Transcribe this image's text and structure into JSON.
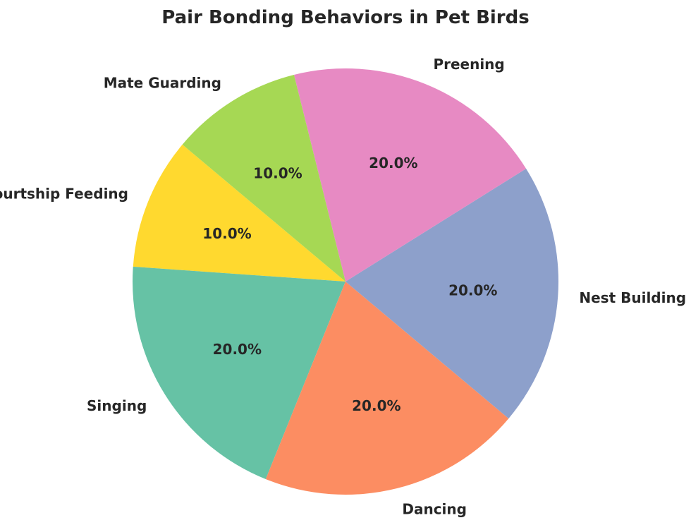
{
  "chart_data": {
    "type": "pie",
    "title": "Pair Bonding Behaviors in Pet Birds",
    "start_angle_deg": 140,
    "direction": "counterclockwise",
    "slices": [
      {
        "label": "Courtship Feeding",
        "value": 10,
        "pct_label": "10.0%",
        "color": "#ffd92f"
      },
      {
        "label": "Singing",
        "value": 20,
        "pct_label": "20.0%",
        "color": "#66c2a5"
      },
      {
        "label": "Dancing",
        "value": 20,
        "pct_label": "20.0%",
        "color": "#fc8d62"
      },
      {
        "label": "Nest Building",
        "value": 20,
        "pct_label": "20.0%",
        "color": "#8da0cb"
      },
      {
        "label": "Preening",
        "value": 20,
        "pct_label": "20.0%",
        "color": "#e78ac3"
      },
      {
        "label": "Mate Guarding",
        "value": 10,
        "pct_label": "10.0%",
        "color": "#a6d854"
      }
    ]
  }
}
